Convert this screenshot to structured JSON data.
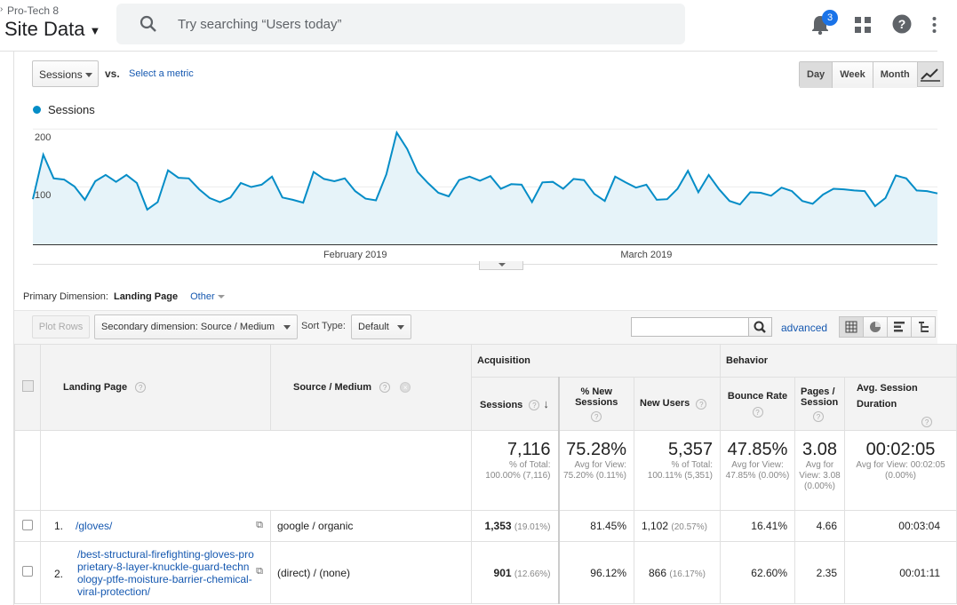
{
  "header": {
    "account": "Pro-Tech 8",
    "property": "Site Data",
    "search_placeholder": "Try searching “Users today”",
    "notification_count": "3"
  },
  "controls": {
    "metric": "Sessions",
    "vs": "vs.",
    "select_metric": "Select a metric",
    "period_buttons": [
      "Day",
      "Week",
      "Month"
    ],
    "selected_period": "Day"
  },
  "chart_data": {
    "type": "line",
    "legend": "Sessions",
    "yticks": [
      "200",
      "100"
    ],
    "ylim": [
      0,
      215
    ],
    "xlabels": [
      "February 2019",
      "March 2019"
    ],
    "x_label_index": [
      31,
      59
    ],
    "color": "#058dc7",
    "series": [
      {
        "name": "Sessions",
        "values": [
          78,
          155,
          114,
          112,
          100,
          77,
          109,
          120,
          108,
          120,
          106,
          60,
          73,
          128,
          115,
          114,
          95,
          80,
          73,
          81,
          106,
          99,
          103,
          117,
          81,
          77,
          72,
          125,
          113,
          109,
          114,
          92,
          79,
          76,
          121,
          193,
          165,
          125,
          106,
          89,
          83,
          111,
          117,
          110,
          118,
          96,
          104,
          103,
          73,
          107,
          108,
          96,
          113,
          111,
          87,
          75,
          117,
          107,
          98,
          103,
          77,
          78,
          96,
          127,
          90,
          120,
          95,
          75,
          69,
          90,
          89,
          84,
          98,
          92,
          75,
          70,
          86,
          96,
          95,
          93,
          92,
          66,
          80,
          119,
          114,
          93,
          92,
          88
        ]
      }
    ]
  },
  "report": {
    "primary_dimension_label": "Primary Dimension:",
    "primary_dimension": "Landing Page",
    "other": "Other",
    "plot_rows": "Plot Rows",
    "secondary_dimension": "Secondary dimension: Source / Medium",
    "sort_type_label": "Sort Type:",
    "sort_type": "Default",
    "advanced": "advanced"
  },
  "table": {
    "col_landing": "Landing Page",
    "col_source": "Source / Medium",
    "group_acq": "Acquisition",
    "group_beh": "Behavior",
    "col_sessions": "Sessions",
    "col_new_sessions": "% New Sessions",
    "col_new_users": "New Users",
    "col_bounce": "Bounce Rate",
    "col_pages": "Pages / Session",
    "col_duration": "Avg. Session Duration",
    "totals": {
      "sessions": "7,116",
      "sessions_note": "% of Total: 100.00% (7,116)",
      "new_sessions": "75.28%",
      "new_sessions_note": "Avg for View: 75.20% (0.11%)",
      "new_users": "5,357",
      "new_users_note": "% of Total: 100.11% (5,351)",
      "bounce": "47.85%",
      "bounce_note": "Avg for View: 47.85% (0.00%)",
      "pages": "3.08",
      "pages_note": "Avg for View: 3.08 (0.00%)",
      "duration": "00:02:05",
      "duration_note": "Avg for View: 00:02:05 (0.00%)"
    },
    "rows": [
      {
        "idx": "1.",
        "page": "/gloves/",
        "source": "google / organic",
        "sessions": "1,353",
        "sessions_pct": "(19.01%)",
        "new_sessions": "81.45%",
        "new_users": "1,102",
        "new_users_pct": "(20.57%)",
        "bounce": "16.41%",
        "pages": "4.66",
        "duration": "00:03:04"
      },
      {
        "idx": "2.",
        "page": "/best-structural-firefighting-gloves-proprietary-8-layer-knuckle-guard-technology-ptfe-moisture-barrier-chemical-viral-protection/",
        "source": "(direct) / (none)",
        "sessions": "901",
        "sessions_pct": "(12.66%)",
        "new_sessions": "96.12%",
        "new_users": "866",
        "new_users_pct": "(16.17%)",
        "bounce": "62.60%",
        "pages": "2.35",
        "duration": "00:01:11"
      }
    ]
  }
}
